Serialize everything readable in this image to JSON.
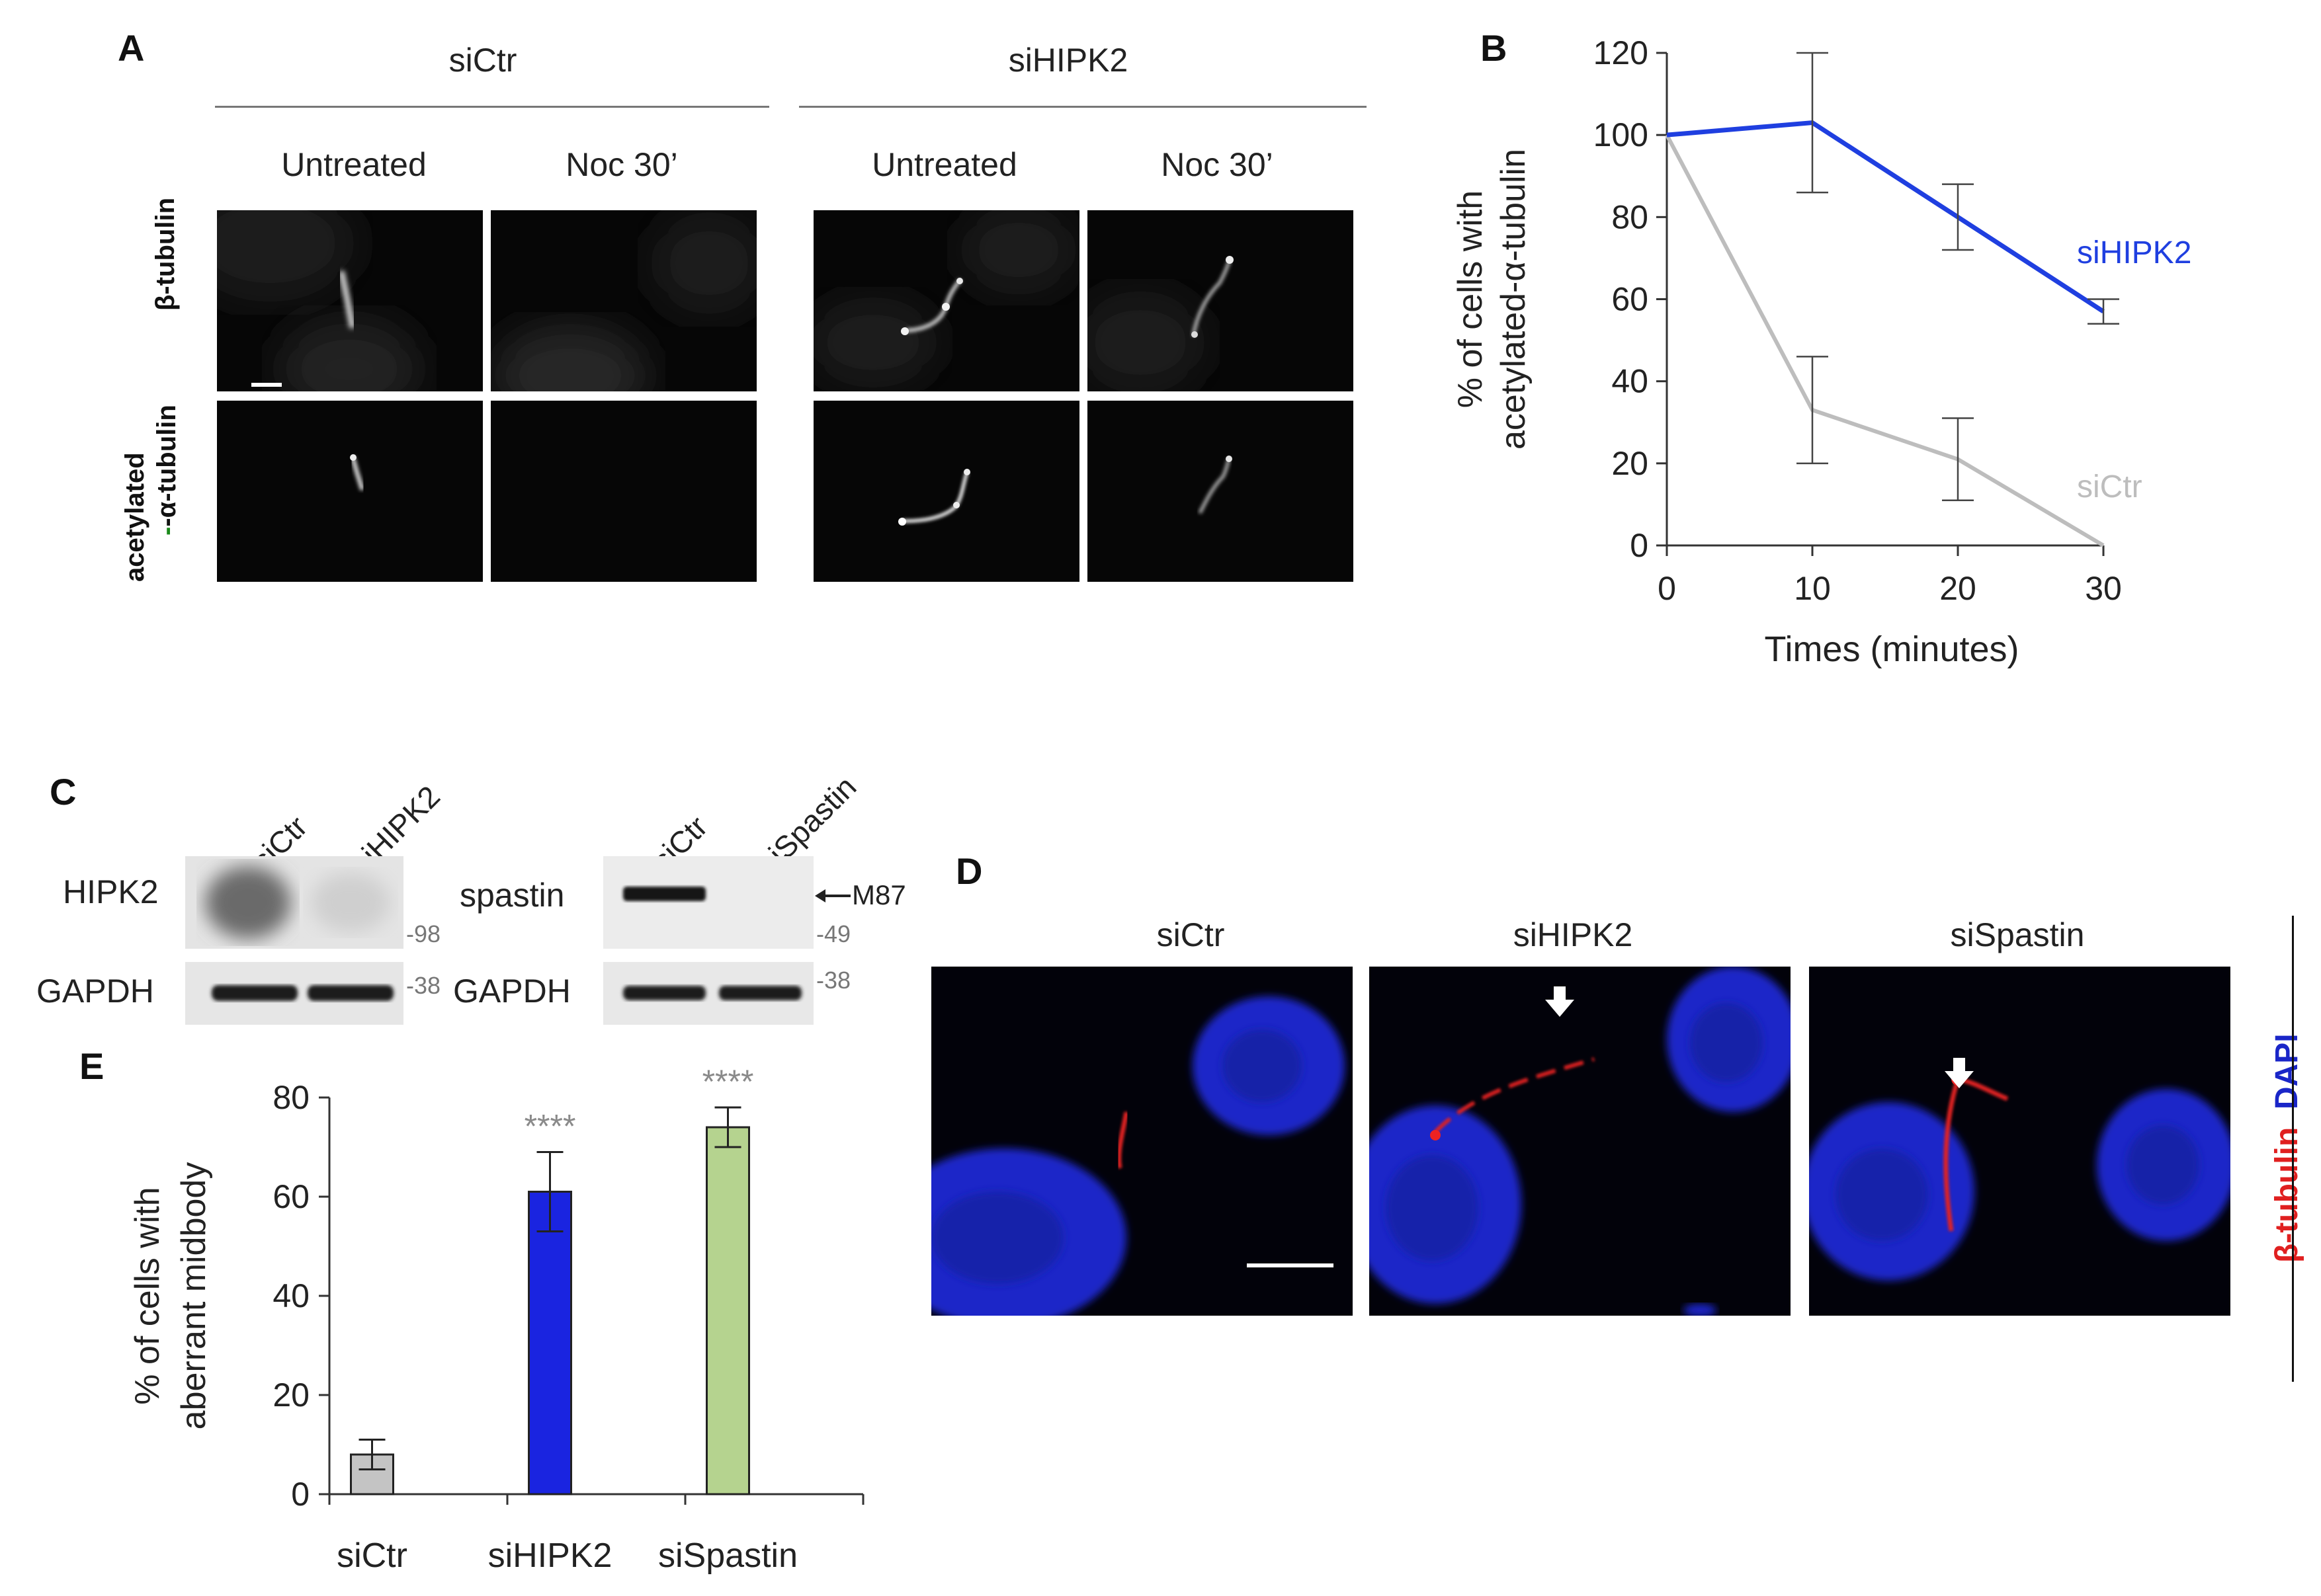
{
  "panelA": {
    "label": "A",
    "groups": [
      "siCtr",
      "siHIPK2"
    ],
    "conditions": [
      "Untreated",
      "Noc  30’",
      "Untreated",
      "Noc  30’"
    ],
    "row_labels": [
      "β-tubulin",
      "acetylated",
      "-α-tubulin"
    ]
  },
  "panelB": {
    "label": "B"
  },
  "panelC": {
    "label": "C",
    "blot1_lanes": [
      "siCtr",
      "siHIPK2"
    ],
    "blot1_rows": [
      "HIPK2",
      "GAPDH"
    ],
    "blot1_mw": [
      "-98",
      "-38"
    ],
    "blot2_lanes": [
      "siCtr",
      "siSpastin"
    ],
    "blot2_rows": [
      "spastin",
      "GAPDH"
    ],
    "blot2_mw": [
      "-49",
      "-38"
    ],
    "blot2_band": "M87"
  },
  "panelD": {
    "label": "D",
    "conditions": [
      "siCtr",
      "siHIPK2",
      "siSpastin"
    ],
    "stain1": "β-tubulin",
    "stain2": "DAPI"
  },
  "panelE": {
    "label": "E"
  },
  "chart_data": [
    {
      "type": "line",
      "panel": "B",
      "xlabel": "Times (minutes)",
      "ylabel_lines": [
        "% of cells with",
        "acetylated-α-tubulin"
      ],
      "x": [
        0,
        10,
        20,
        30
      ],
      "xlim": [
        0,
        30
      ],
      "ylim": [
        0,
        120
      ],
      "yticks": [
        0,
        20,
        40,
        60,
        80,
        100,
        120
      ],
      "grid": false,
      "series": [
        {
          "name": "siHIPK2",
          "color": "#1f3fe0",
          "values": [
            100,
            103,
            80,
            57
          ],
          "errors": [
            0,
            17,
            8,
            3
          ]
        },
        {
          "name": "siCtr",
          "color": "#bdbdbd",
          "values": [
            100,
            33,
            21,
            0
          ],
          "errors": [
            0,
            13,
            10,
            0
          ]
        }
      ]
    },
    {
      "type": "bar",
      "panel": "E",
      "ylabel_lines": [
        "% of cells with",
        "aberrant midbody"
      ],
      "categories": [
        "siCtr",
        "siHIPK2",
        "siSpastin"
      ],
      "values": [
        8,
        61,
        74
      ],
      "errors": [
        3,
        8,
        4
      ],
      "colors": [
        "#c4c4c4",
        "#1a24e0",
        "#b5d38f"
      ],
      "significance": [
        "",
        "****",
        "****"
      ],
      "ylim": [
        0,
        80
      ],
      "yticks": [
        0,
        20,
        40,
        60,
        80
      ],
      "grid": false
    }
  ]
}
